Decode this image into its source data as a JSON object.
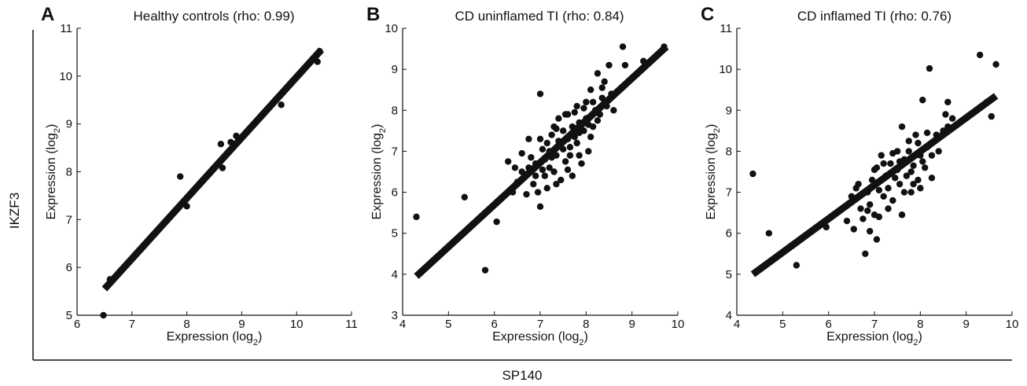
{
  "figure": {
    "outer_x_label": "SP140",
    "outer_y_label": "IKZF3"
  },
  "chart_data": [
    {
      "type": "scatter",
      "panel_letter": "A",
      "title": "Healthy controls (rho: 0.99)",
      "xlabel_main": "Expression (log",
      "xlabel_sub": "2",
      "xlabel_close": ")",
      "ylabel_main": "Expression (log",
      "ylabel_sub": "2",
      "ylabel_close": ")",
      "xlim": [
        6,
        11
      ],
      "ylim": [
        5,
        11
      ],
      "xticks": [
        6,
        7,
        8,
        9,
        10,
        11
      ],
      "yticks": [
        5,
        6,
        7,
        8,
        9,
        10,
        11
      ],
      "fit_line": {
        "x": [
          6.5,
          10.45
        ],
        "y": [
          5.55,
          10.55
        ]
      },
      "points": [
        [
          6.48,
          5.0
        ],
        [
          6.6,
          5.75
        ],
        [
          7.88,
          7.9
        ],
        [
          8.0,
          7.28
        ],
        [
          8.62,
          8.58
        ],
        [
          8.65,
          8.08
        ],
        [
          8.8,
          8.62
        ],
        [
          8.9,
          8.75
        ],
        [
          9.72,
          9.4
        ],
        [
          10.38,
          10.3
        ],
        [
          10.42,
          10.52
        ]
      ]
    },
    {
      "type": "scatter",
      "panel_letter": "B",
      "title": "CD uninflamed TI (rho: 0.84)",
      "xlabel_main": "Expression (log",
      "xlabel_sub": "2",
      "xlabel_close": ")",
      "ylabel_main": "Expression (log",
      "ylabel_sub": "2",
      "ylabel_close": ")",
      "xlim": [
        4,
        10
      ],
      "ylim": [
        3,
        10
      ],
      "xticks": [
        4,
        5,
        6,
        7,
        8,
        9,
        10
      ],
      "yticks": [
        3,
        4,
        5,
        6,
        7,
        8,
        9,
        10
      ],
      "fit_line": {
        "x": [
          4.3,
          9.75
        ],
        "y": [
          3.95,
          9.55
        ]
      },
      "points": [
        [
          4.3,
          5.4
        ],
        [
          5.35,
          5.88
        ],
        [
          5.8,
          4.1
        ],
        [
          6.05,
          5.28
        ],
        [
          6.3,
          6.75
        ],
        [
          6.4,
          6.0
        ],
        [
          6.45,
          6.6
        ],
        [
          6.5,
          6.25
        ],
        [
          6.6,
          6.5
        ],
        [
          6.7,
          5.95
        ],
        [
          6.75,
          6.6
        ],
        [
          6.8,
          6.85
        ],
        [
          6.85,
          6.2
        ],
        [
          6.9,
          6.7
        ],
        [
          6.95,
          6.0
        ],
        [
          7.0,
          8.4
        ],
        [
          7.0,
          5.65
        ],
        [
          7.05,
          7.05
        ],
        [
          7.1,
          6.4
        ],
        [
          7.1,
          6.8
        ],
        [
          7.15,
          7.2
        ],
        [
          7.2,
          6.6
        ],
        [
          7.2,
          7.0
        ],
        [
          7.25,
          7.4
        ],
        [
          7.3,
          6.5
        ],
        [
          7.3,
          7.6
        ],
        [
          7.35,
          6.9
        ],
        [
          7.4,
          7.25
        ],
        [
          7.4,
          7.8
        ],
        [
          7.45,
          6.3
        ],
        [
          7.5,
          7.05
        ],
        [
          7.5,
          7.5
        ],
        [
          7.55,
          6.75
        ],
        [
          7.6,
          7.3
        ],
        [
          7.6,
          7.9
        ],
        [
          7.65,
          7.1
        ],
        [
          7.7,
          7.6
        ],
        [
          7.7,
          6.4
        ],
        [
          7.75,
          7.35
        ],
        [
          7.8,
          8.1
        ],
        [
          7.8,
          7.2
        ],
        [
          7.85,
          7.7
        ],
        [
          7.9,
          6.7
        ],
        [
          7.95,
          7.5
        ],
        [
          8.0,
          8.2
        ],
        [
          8.0,
          7.8
        ],
        [
          8.05,
          7.0
        ],
        [
          8.1,
          8.5
        ],
        [
          8.15,
          7.6
        ],
        [
          8.2,
          8.0
        ],
        [
          8.25,
          8.9
        ],
        [
          8.3,
          7.9
        ],
        [
          8.35,
          8.3
        ],
        [
          8.4,
          8.7
        ],
        [
          8.45,
          8.1
        ],
        [
          8.5,
          9.1
        ],
        [
          8.55,
          8.4
        ],
        [
          8.6,
          8.0
        ],
        [
          8.8,
          9.55
        ],
        [
          8.85,
          9.1
        ],
        [
          9.25,
          9.2
        ],
        [
          9.7,
          9.55
        ],
        [
          6.9,
          6.4
        ],
        [
          7.0,
          7.3
        ],
        [
          7.15,
          6.1
        ],
        [
          7.25,
          6.85
        ],
        [
          7.35,
          7.55
        ],
        [
          7.45,
          7.15
        ],
        [
          7.55,
          7.9
        ],
        [
          7.65,
          6.9
        ],
        [
          7.75,
          7.95
        ],
        [
          7.85,
          7.45
        ],
        [
          7.95,
          8.05
        ],
        [
          8.05,
          7.65
        ],
        [
          8.15,
          8.2
        ],
        [
          8.25,
          7.75
        ],
        [
          8.35,
          8.55
        ],
        [
          6.6,
          6.95
        ],
        [
          6.75,
          7.3
        ],
        [
          7.05,
          6.55
        ],
        [
          7.35,
          6.2
        ],
        [
          7.6,
          6.55
        ],
        [
          7.85,
          6.9
        ],
        [
          8.1,
          7.35
        ]
      ]
    },
    {
      "type": "scatter",
      "panel_letter": "C",
      "title": "CD inflamed TI (rho: 0.76)",
      "xlabel_main": "Expression (log",
      "xlabel_sub": "2",
      "xlabel_close": ")",
      "ylabel_main": "Expression (log",
      "ylabel_sub": "2",
      "ylabel_close": ")",
      "xlim": [
        4,
        10
      ],
      "ylim": [
        4,
        11
      ],
      "xticks": [
        4,
        5,
        6,
        7,
        8,
        9,
        10
      ],
      "yticks": [
        4,
        5,
        6,
        7,
        8,
        9,
        10,
        11
      ],
      "fit_line": {
        "x": [
          4.35,
          9.65
        ],
        "y": [
          5.0,
          9.35
        ]
      },
      "points": [
        [
          4.35,
          7.45
        ],
        [
          4.7,
          6.0
        ],
        [
          5.3,
          5.22
        ],
        [
          5.95,
          6.15
        ],
        [
          6.4,
          6.3
        ],
        [
          6.5,
          6.9
        ],
        [
          6.55,
          6.1
        ],
        [
          6.6,
          7.1
        ],
        [
          6.7,
          6.6
        ],
        [
          6.75,
          6.35
        ],
        [
          6.8,
          5.5
        ],
        [
          6.85,
          7.0
        ],
        [
          6.9,
          6.7
        ],
        [
          6.95,
          7.3
        ],
        [
          7.0,
          6.45
        ],
        [
          7.05,
          7.6
        ],
        [
          7.05,
          5.85
        ],
        [
          7.1,
          7.05
        ],
        [
          7.15,
          7.9
        ],
        [
          7.2,
          6.9
        ],
        [
          7.25,
          7.4
        ],
        [
          7.3,
          7.1
        ],
        [
          7.35,
          7.7
        ],
        [
          7.4,
          6.8
        ],
        [
          7.45,
          7.35
        ],
        [
          7.5,
          8.0
        ],
        [
          7.55,
          7.2
        ],
        [
          7.6,
          8.6
        ],
        [
          7.6,
          6.45
        ],
        [
          7.65,
          7.8
        ],
        [
          7.7,
          7.4
        ],
        [
          7.75,
          8.25
        ],
        [
          7.8,
          7.0
        ],
        [
          7.85,
          7.65
        ],
        [
          7.9,
          8.4
        ],
        [
          7.95,
          7.3
        ],
        [
          8.0,
          7.9
        ],
        [
          8.05,
          9.25
        ],
        [
          8.1,
          7.6
        ],
        [
          8.15,
          8.1
        ],
        [
          8.2,
          10.02
        ],
        [
          8.25,
          7.35
        ],
        [
          8.3,
          8.25
        ],
        [
          8.4,
          8.0
        ],
        [
          8.5,
          8.5
        ],
        [
          8.55,
          8.9
        ],
        [
          8.6,
          8.6
        ],
        [
          8.6,
          9.2
        ],
        [
          8.7,
          8.8
        ],
        [
          9.3,
          10.35
        ],
        [
          9.45,
          9.2
        ],
        [
          9.55,
          8.85
        ],
        [
          9.65,
          10.12
        ],
        [
          6.65,
          7.2
        ],
        [
          6.9,
          6.05
        ],
        [
          7.0,
          7.55
        ],
        [
          7.2,
          7.7
        ],
        [
          7.3,
          6.6
        ],
        [
          7.4,
          7.95
        ],
        [
          7.5,
          7.55
        ],
        [
          7.65,
          7.0
        ],
        [
          7.75,
          8.0
        ],
        [
          7.85,
          7.2
        ],
        [
          7.95,
          8.2
        ],
        [
          8.05,
          7.75
        ],
        [
          8.15,
          8.45
        ],
        [
          8.25,
          7.9
        ],
        [
          8.35,
          8.4
        ],
        [
          7.1,
          6.4
        ],
        [
          7.35,
          7.45
        ],
        [
          7.55,
          7.75
        ],
        [
          7.8,
          7.5
        ],
        [
          8.0,
          7.1
        ],
        [
          6.85,
          6.55
        ]
      ]
    }
  ]
}
